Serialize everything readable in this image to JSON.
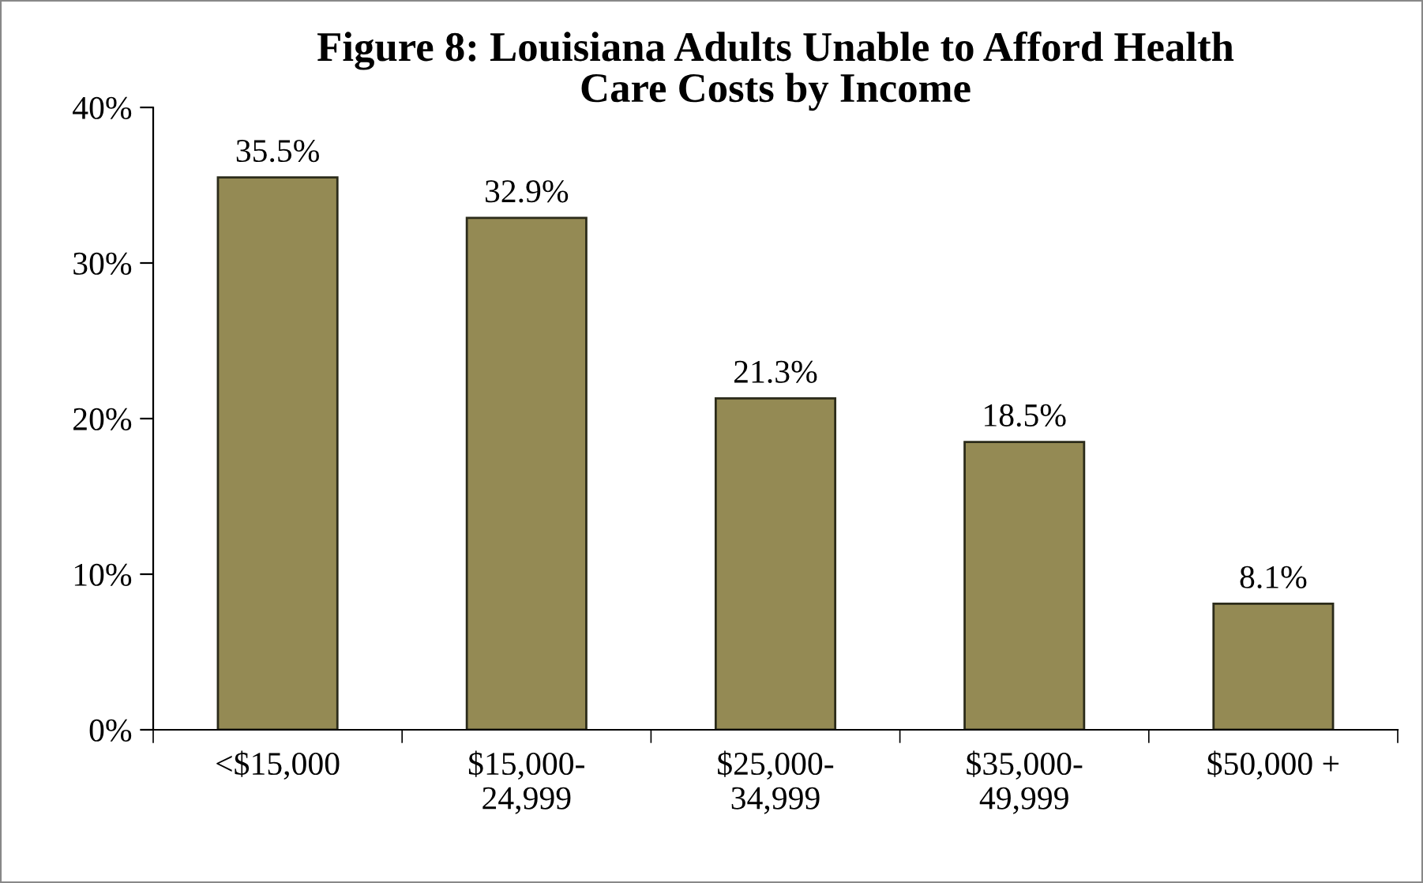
{
  "chart_data": {
    "type": "bar",
    "title": "Figure 8: Louisiana Adults Unable to Afford Health\nCare Costs by Income",
    "categories": [
      "<$15,000",
      "$15,000-\n24,999",
      "$25,000-\n34,999",
      "$35,000-\n49,999",
      "$50,000 +"
    ],
    "values": [
      35.5,
      32.9,
      21.3,
      18.5,
      8.1
    ],
    "value_labels": [
      "35.5%",
      "32.9%",
      "21.3%",
      "18.5%",
      "8.1%"
    ],
    "color": "#948a54",
    "ylim": [
      0,
      40
    ],
    "yticks": [
      {
        "value": 0,
        "label": "0%"
      },
      {
        "value": 10,
        "label": "10%"
      },
      {
        "value": 20,
        "label": "20%"
      },
      {
        "value": 30,
        "label": "30%"
      },
      {
        "value": 40,
        "label": "40%"
      }
    ],
    "grid": false,
    "legend": false
  }
}
